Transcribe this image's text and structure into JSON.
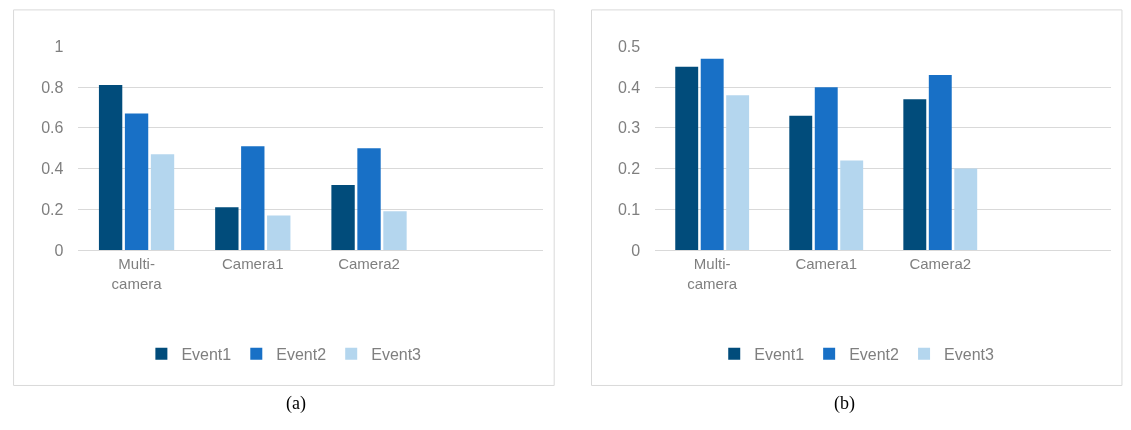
{
  "chart_data": [
    {
      "type": "bar",
      "categories": [
        "Multi-camera",
        "Camera1",
        "Camera2",
        null
      ],
      "series": [
        {
          "name": "Event1",
          "color": "#014c7b",
          "values": [
            0.81,
            0.21,
            0.32,
            null
          ]
        },
        {
          "name": "Event2",
          "color": "#1870c6",
          "values": [
            0.67,
            0.51,
            0.5,
            null
          ]
        },
        {
          "name": "Event3",
          "color": "#b4d6ee",
          "values": [
            0.47,
            0.17,
            0.19,
            null
          ]
        }
      ],
      "ylim": [
        0,
        1
      ],
      "yticks": [
        0,
        0.2,
        0.4,
        0.6,
        0.8,
        1
      ],
      "grid": "y",
      "legend": "bottom",
      "annotations": [
        "(a)"
      ]
    },
    {
      "type": "bar",
      "categories": [
        "Multi-camera",
        "Camera1",
        "Camera2",
        null
      ],
      "series": [
        {
          "name": "Event1",
          "color": "#014c7b",
          "values": [
            0.45,
            0.33,
            0.37,
            null
          ]
        },
        {
          "name": "Event2",
          "color": "#1870c6",
          "values": [
            0.47,
            0.4,
            0.43,
            null
          ]
        },
        {
          "name": "Event3",
          "color": "#b4d6ee",
          "values": [
            0.38,
            0.22,
            0.2,
            null
          ]
        }
      ],
      "ylim": [
        0,
        0.5
      ],
      "yticks": [
        0,
        0.1,
        0.2,
        0.3,
        0.4,
        0.5
      ],
      "grid": "y",
      "legend": "bottom",
      "annotations": [
        "(b)"
      ]
    }
  ]
}
